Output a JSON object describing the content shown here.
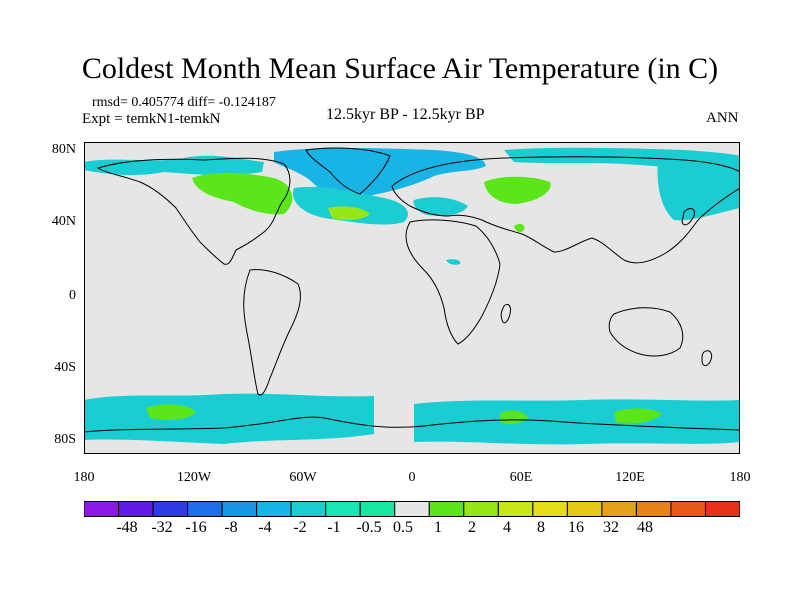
{
  "header": {
    "title": "Coldest Month Mean Surface Air Temperature (in C)",
    "stats": "rmsd= 0.405774 diff= -0.124187",
    "expt": "Expt = temkN1-temkN",
    "center_label": "12.5kyr BP - 12.5kyr BP",
    "season": "ANN"
  },
  "axes": {
    "y_ticks": [
      "80N",
      "40N",
      "0",
      "40S",
      "80S"
    ],
    "x_ticks": [
      "180",
      "120W",
      "60W",
      "0",
      "60E",
      "120E",
      "180"
    ]
  },
  "colorbar": {
    "colors": [
      "#8d19e6",
      "#5f19e6",
      "#2f3ce6",
      "#1e6ee6",
      "#1996e6",
      "#19b4e6",
      "#19cdd2",
      "#19e6b4",
      "#19e6a0",
      "#e6e6e6",
      "#5ae619",
      "#96e619",
      "#c8e619",
      "#e6dc19",
      "#e6c819",
      "#e6a019",
      "#e68219",
      "#e65a19",
      "#e63219"
    ],
    "labels": [
      "-48",
      "-32",
      "-16",
      "-8",
      "-4",
      "-2",
      "-1",
      "-0.5",
      "0.5",
      "1",
      "2",
      "4",
      "8",
      "16",
      "32",
      "48"
    ]
  },
  "map_colors": {
    "background": "#e6e6e6",
    "cool_light": "#19e6b4",
    "cool": "#19cdd2",
    "cool_dark": "#19b4e6",
    "warm": "#5ae619",
    "warm_light": "#96e619"
  }
}
